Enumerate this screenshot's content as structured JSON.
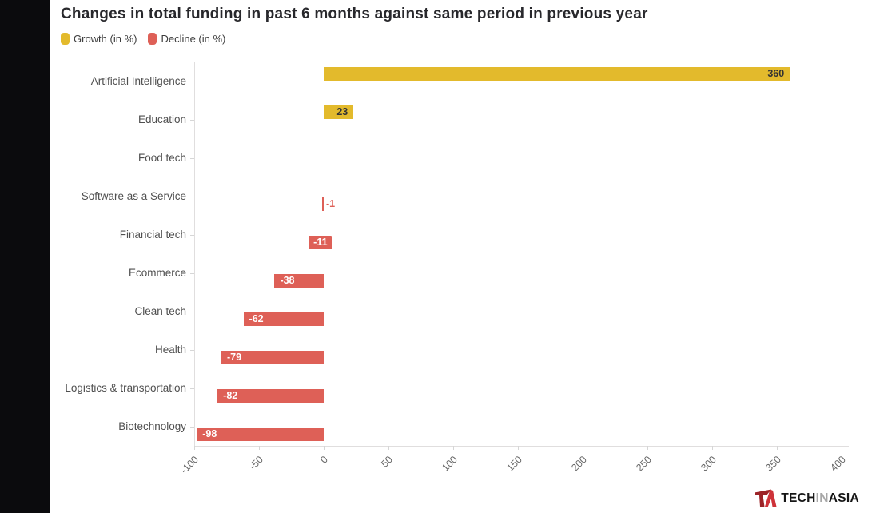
{
  "title": "Changes in total funding in past 6 months against same period in previous year",
  "legend": {
    "items": [
      {
        "label": "Growth (in %)",
        "color": "#E3BA2C"
      },
      {
        "label": "Decline (in %)",
        "color": "#DE6057"
      }
    ]
  },
  "chart_data": {
    "type": "bar",
    "orientation": "horizontal",
    "title": "Changes in total funding in past 6 months against same period in previous year",
    "categories": [
      "Artificial Intelligence",
      "Education",
      "Food tech",
      "Software as a Service",
      "Financial tech",
      "Ecommerce",
      "Clean tech",
      "Health",
      "Logistics & transportation",
      "Biotechnology"
    ],
    "series": [
      {
        "name": "Growth (in %)",
        "color": "#E3BA2C",
        "values": [
          360,
          23,
          0,
          0,
          0,
          0,
          0,
          0,
          0,
          0
        ]
      },
      {
        "name": "Decline (in %)",
        "color": "#DE6057",
        "values": [
          0,
          0,
          0,
          -1,
          -11,
          -38,
          -62,
          -79,
          -82,
          -98
        ]
      }
    ],
    "net_values": [
      360,
      23,
      0,
      -1,
      -11,
      -38,
      -62,
      -79,
      -82,
      -98
    ],
    "data_labels_shown": [
      "360",
      "23",
      "",
      "-1",
      "-11",
      "-38",
      "-62",
      "-79",
      "-82",
      "-98"
    ],
    "x_ticks": [
      -100,
      -50,
      0,
      50,
      100,
      150,
      200,
      250,
      300,
      350,
      400
    ],
    "xlim": [
      -100,
      400
    ],
    "xlabel": "",
    "ylabel": "",
    "grid": false,
    "legend_position": "top-left",
    "growth_label_color": "#333333",
    "decline_label_color": "#ffffff"
  },
  "branding": {
    "logo_icon": "techinasia-ta-icon",
    "parts": [
      {
        "text": "TECH",
        "color": "#161616"
      },
      {
        "text": "IN",
        "color": "#a7a7a7"
      },
      {
        "text": "ASIA",
        "color": "#161616"
      }
    ],
    "mark_dark": "#9C2428",
    "mark_bright": "#CE3339"
  }
}
